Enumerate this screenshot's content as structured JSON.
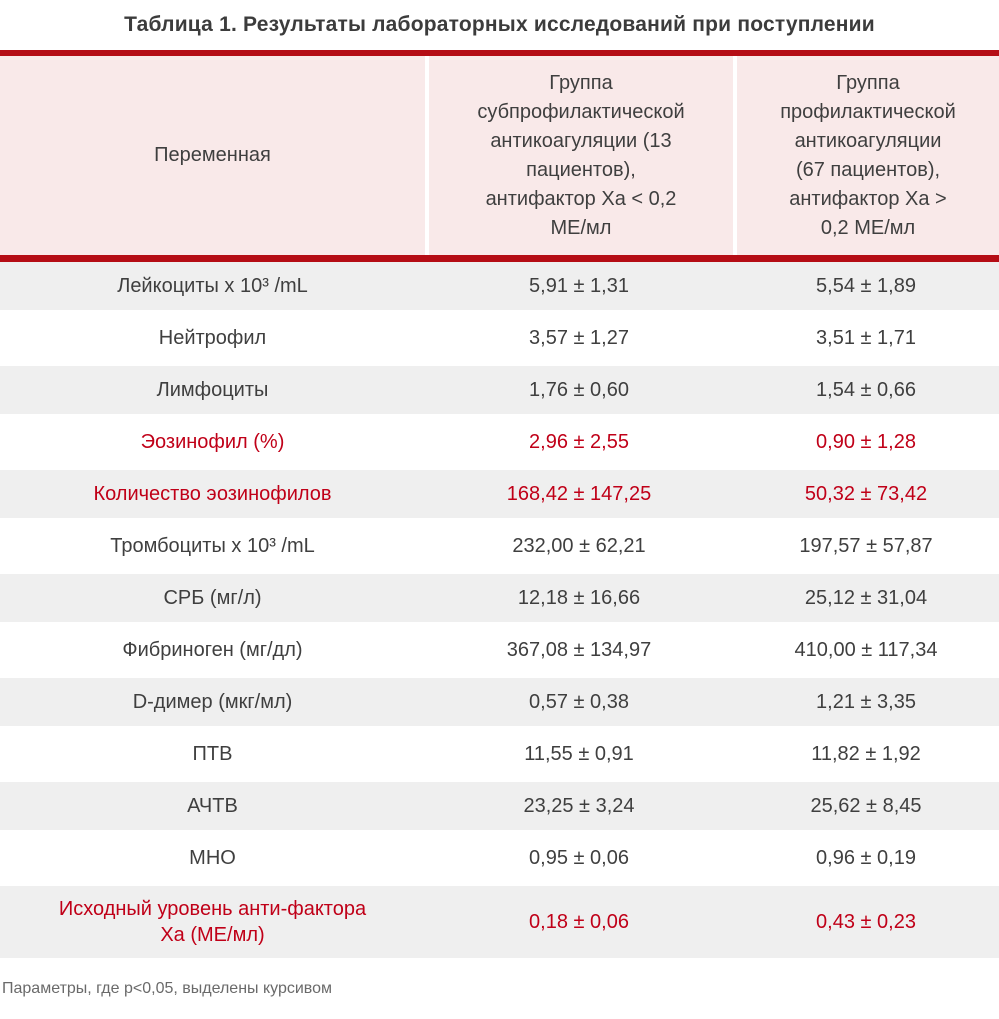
{
  "caption": "Таблица 1. Результаты лабораторных исследований при поступлении",
  "header": {
    "variable": "Переменная",
    "group1": "Группа\nсубпрофилактической\nантикоагуляции (13\nпациентов),\nантифактор Ха < 0,2\nМЕ/мл",
    "group2": "Группа\nпрофилактической\nантикоагуляции\n(67 пациентов),\nантифактор Ха >\n0,2 МЕ/мл"
  },
  "rows": [
    {
      "label": "Лейкоциты x 10³ /mL",
      "group1": "5,91 ± 1,31",
      "group2": "5,54 ± 1,89",
      "highlight": false,
      "tall": false
    },
    {
      "label": "Нейтрофил",
      "group1": "3,57 ± 1,27",
      "group2": "3,51 ± 1,71",
      "highlight": false,
      "tall": false
    },
    {
      "label": "Лимфоциты",
      "group1": "1,76 ± 0,60",
      "group2": "1,54 ± 0,66",
      "highlight": false,
      "tall": false
    },
    {
      "label": "Эозинофил (%)",
      "group1": "2,96 ± 2,55",
      "group2": "0,90 ± 1,28",
      "highlight": true,
      "tall": false
    },
    {
      "label": "Количество эозинофилов",
      "group1": "168,42 ± 147,25",
      "group2": "50,32 ± 73,42",
      "highlight": true,
      "tall": false
    },
    {
      "label": "Тромбоциты x 10³ /mL",
      "group1": "232,00 ± 62,21",
      "group2": "197,57 ± 57,87",
      "highlight": false,
      "tall": false
    },
    {
      "label": "СРБ (мг/л)",
      "group1": "12,18 ± 16,66",
      "group2": "25,12 ± 31,04",
      "highlight": false,
      "tall": false
    },
    {
      "label": "Фибриноген (мг/дл)",
      "group1": "367,08 ± 134,97",
      "group2": "410,00 ± 117,34",
      "highlight": false,
      "tall": false
    },
    {
      "label": "D-димер (мкг/мл)",
      "group1": "0,57 ± 0,38",
      "group2": "1,21 ± 3,35",
      "highlight": false,
      "tall": false
    },
    {
      "label": "ПТВ",
      "group1": "11,55 ± 0,91",
      "group2": "11,82 ± 1,92",
      "highlight": false,
      "tall": false
    },
    {
      "label": "АЧТВ",
      "group1": "23,25 ± 3,24",
      "group2": "25,62 ± 8,45",
      "highlight": false,
      "tall": false
    },
    {
      "label": "МНО",
      "group1": "0,95 ± 0,06",
      "group2": "0,96 ± 0,19",
      "highlight": false,
      "tall": false
    },
    {
      "label": "Исходный уровень анти-фактора\nХа (МЕ/мл)",
      "group1": "0,18 ± 0,06",
      "group2": "0,43 ± 0,23",
      "highlight": true,
      "tall": true
    }
  ],
  "footnote": "Параметры, где p<0,05, выделены курсивом",
  "colors": {
    "accent_bar_red": "#b50d15",
    "highlight_text_red": "#c00018",
    "header_bg_pink": "#f9e9e9",
    "row_alt_gray": "#efefef",
    "body_text": "#3f3f3f",
    "footnote_text": "#6a6a6a"
  },
  "chart_data": {
    "type": "table",
    "title": "Таблица 1. Результаты лабораторных исследований при поступлении",
    "columns": [
      "Переменная",
      "Группа субпрофилактической антикоагуляции (13 пациентов), антифактор Ха < 0,2 МЕ/мл",
      "Группа профилактической антикоагуляции (67 пациентов), антифактор Ха > 0,2 МЕ/мл"
    ],
    "rows": [
      [
        "Лейкоциты x 10³ /mL",
        "5,91 ± 1,31",
        "5,54 ± 1,89"
      ],
      [
        "Нейтрофил",
        "3,57 ± 1,27",
        "3,51 ± 1,71"
      ],
      [
        "Лимфоциты",
        "1,76 ± 0,60",
        "1,54 ± 0,66"
      ],
      [
        "Эозинофил (%)",
        "2,96 ± 2,55",
        "0,90 ± 1,28"
      ],
      [
        "Количество эозинофилов",
        "168,42 ± 147,25",
        "50,32 ± 73,42"
      ],
      [
        "Тромбоциты x 10³ /mL",
        "232,00 ± 62,21",
        "197,57 ± 57,87"
      ],
      [
        "СРБ (мг/л)",
        "12,18 ± 16,66",
        "25,12 ± 31,04"
      ],
      [
        "Фибриноген (мг/дл)",
        "367,08 ± 134,97",
        "410,00 ± 117,34"
      ],
      [
        "D-димер (мкг/мл)",
        "0,57 ± 0,38",
        "1,21 ± 3,35"
      ],
      [
        "ПТВ",
        "11,55 ± 0,91",
        "11,82 ± 1,92"
      ],
      [
        "АЧТВ",
        "23,25 ± 3,24",
        "25,62 ± 8,45"
      ],
      [
        "МНО",
        "0,95 ± 0,06",
        "0,96 ± 0,19"
      ],
      [
        "Исходный уровень анти-фактора Ха (МЕ/мл)",
        "0,18 ± 0,06",
        "0,43 ± 0,23"
      ]
    ],
    "highlighted_rows_red": [
      "Эозинофил (%)",
      "Количество эозинофилов",
      "Исходный уровень анти-фактора Ха (МЕ/мл)"
    ],
    "note": "Параметры, где p<0,05, выделены курсивом"
  }
}
